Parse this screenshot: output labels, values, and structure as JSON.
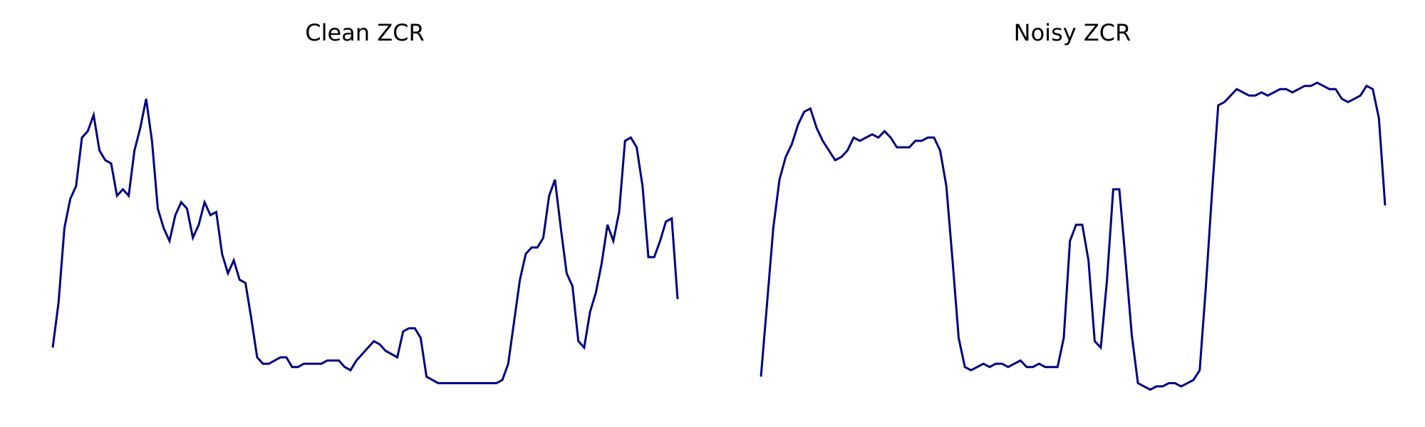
{
  "chart_data": [
    {
      "type": "line",
      "title": "Clean ZCR",
      "xlabel": "",
      "ylabel": "",
      "grid": false,
      "axes_visible": false,
      "line_color": "#000080",
      "ylim": [
        0,
        100
      ],
      "series": [
        {
          "values": [
            14,
            28,
            51,
            60,
            64,
            79,
            81,
            86,
            75,
            72,
            71,
            61,
            63,
            61,
            75,
            82,
            91,
            78,
            57,
            51,
            47,
            55,
            59,
            57,
            48,
            52,
            59,
            55,
            56,
            43,
            37,
            41,
            35,
            34,
            23,
            11,
            9,
            9,
            10,
            11,
            11,
            8,
            8,
            9,
            9,
            9,
            9,
            10,
            10,
            10,
            8,
            7,
            10,
            12,
            14,
            16,
            15,
            13,
            12,
            11,
            19,
            20,
            20,
            17,
            5,
            4,
            3,
            3,
            3,
            3,
            3,
            3,
            3,
            3,
            3,
            3,
            3,
            4,
            9,
            22,
            35,
            43,
            45,
            45,
            48,
            61,
            66,
            51,
            37,
            33,
            16,
            14,
            25,
            31,
            40,
            52,
            47,
            56,
            78,
            79,
            76,
            64,
            42,
            42,
            47,
            53,
            54,
            29
          ]
        }
      ]
    },
    {
      "type": "line",
      "title": "Noisy ZCR",
      "xlabel": "",
      "ylabel": "",
      "grid": false,
      "axes_visible": false,
      "line_color": "#000080",
      "ylim": [
        0,
        100
      ],
      "series": [
        {
          "values": [
            5,
            28,
            51,
            66,
            73,
            77,
            83,
            87,
            88,
            82,
            78,
            75,
            72,
            73,
            75,
            79,
            78,
            79,
            80,
            79,
            81,
            79,
            76,
            76,
            76,
            78,
            78,
            79,
            79,
            75,
            64,
            41,
            17,
            8,
            7,
            8,
            9,
            8,
            9,
            9,
            8,
            9,
            10,
            8,
            8,
            9,
            8,
            8,
            8,
            17,
            47,
            52,
            52,
            41,
            16,
            14,
            35,
            63,
            63,
            41,
            18,
            3,
            2,
            1,
            2,
            2,
            3,
            3,
            2,
            3,
            4,
            7,
            33,
            62,
            89,
            90,
            92,
            94,
            93,
            92,
            92,
            93,
            92,
            93,
            94,
            94,
            93,
            94,
            95,
            95,
            96,
            95,
            94,
            94,
            91,
            90,
            91,
            92,
            95,
            94,
            85,
            58
          ]
        }
      ]
    }
  ]
}
